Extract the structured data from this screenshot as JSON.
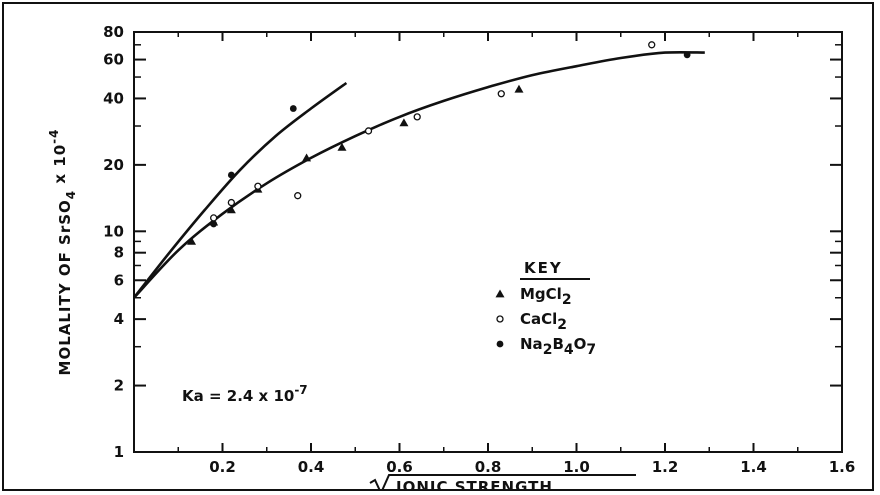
{
  "chart_data": {
    "type": "scatter",
    "title": "",
    "xlabel": "√IONIC STRENGTH",
    "ylabel": "MOLALITY OF SrSO4 x 10-4",
    "x_range": [
      0,
      1.6
    ],
    "y_range": [
      1,
      80
    ],
    "y_scale": "log",
    "grid": false,
    "x_ticks": [
      {
        "value": 0.2,
        "label": "0.2"
      },
      {
        "value": 0.4,
        "label": "0.4"
      },
      {
        "value": 0.6,
        "label": "0.6"
      },
      {
        "value": 0.8,
        "label": "0.8"
      },
      {
        "value": 1.0,
        "label": "1.0"
      },
      {
        "value": 1.2,
        "label": "1.2"
      },
      {
        "value": 1.4,
        "label": "1.4"
      },
      {
        "value": 1.6,
        "label": "1.6"
      }
    ],
    "y_ticks": [
      {
        "value": 1,
        "label": "1"
      },
      {
        "value": 2,
        "label": "2"
      },
      {
        "value": 4,
        "label": "4"
      },
      {
        "value": 6,
        "label": "6"
      },
      {
        "value": 8,
        "label": "8"
      },
      {
        "value": 10,
        "label": "10"
      },
      {
        "value": 20,
        "label": "20"
      },
      {
        "value": 40,
        "label": "40"
      },
      {
        "value": 60,
        "label": "60"
      },
      {
        "value": 80,
        "label": "80"
      }
    ],
    "y_minor_ticks": [
      3,
      5,
      7,
      9,
      30,
      50,
      70
    ],
    "legend": {
      "title": "KEY",
      "placement": "center-right",
      "entries": [
        {
          "marker": "triangle",
          "label_main": "MgCl",
          "label_sub": "2"
        },
        {
          "marker": "open-circle",
          "label_main": "CaCl",
          "label_sub": "2"
        },
        {
          "marker": "filled-circle",
          "label_parts": [
            [
              "Na",
              false
            ],
            [
              "2",
              true
            ],
            [
              "B",
              false
            ],
            [
              "4",
              true
            ],
            [
              "O",
              false
            ],
            [
              "7",
              true
            ]
          ]
        }
      ]
    },
    "annotation": {
      "text_main": "Ka = 2.4  x 10",
      "text_sup": "-7",
      "placement": "lower-left"
    },
    "series": [
      {
        "marker": "triangle",
        "points": [
          [
            0.13,
            9.0
          ],
          [
            0.18,
            11.0
          ],
          [
            0.22,
            12.5
          ],
          [
            0.28,
            15.5
          ],
          [
            0.39,
            21.5
          ],
          [
            0.47,
            24.0
          ],
          [
            0.61,
            31.0
          ],
          [
            0.87,
            44.0
          ]
        ]
      },
      {
        "marker": "open-circle",
        "points": [
          [
            0.18,
            11.5
          ],
          [
            0.22,
            13.5
          ],
          [
            0.28,
            16.0
          ],
          [
            0.37,
            14.5
          ],
          [
            0.53,
            28.5
          ],
          [
            0.64,
            33.0
          ],
          [
            0.83,
            42.0
          ],
          [
            1.17,
            70.0
          ]
        ]
      },
      {
        "marker": "filled-circle",
        "points": [
          [
            0.18,
            10.8
          ],
          [
            0.22,
            18.0
          ],
          [
            0.36,
            36.0
          ],
          [
            1.25,
            63.0
          ]
        ]
      }
    ],
    "curves": [
      {
        "points": [
          [
            0.0,
            5.0
          ],
          [
            0.08,
            8.0
          ],
          [
            0.16,
            12.5
          ],
          [
            0.24,
            19.0
          ],
          [
            0.32,
            27.0
          ],
          [
            0.4,
            36.0
          ],
          [
            0.48,
            47.0
          ]
        ]
      },
      {
        "points": [
          [
            0.0,
            5.0
          ],
          [
            0.1,
            8.2
          ],
          [
            0.2,
            12.0
          ],
          [
            0.3,
            16.5
          ],
          [
            0.4,
            21.5
          ],
          [
            0.5,
            27.0
          ],
          [
            0.6,
            33.0
          ],
          [
            0.7,
            39.0
          ],
          [
            0.8,
            45.0
          ],
          [
            0.9,
            51.0
          ],
          [
            1.0,
            56.0
          ],
          [
            1.1,
            61.0
          ],
          [
            1.2,
            64.5
          ],
          [
            1.29,
            64.5
          ]
        ]
      }
    ]
  }
}
